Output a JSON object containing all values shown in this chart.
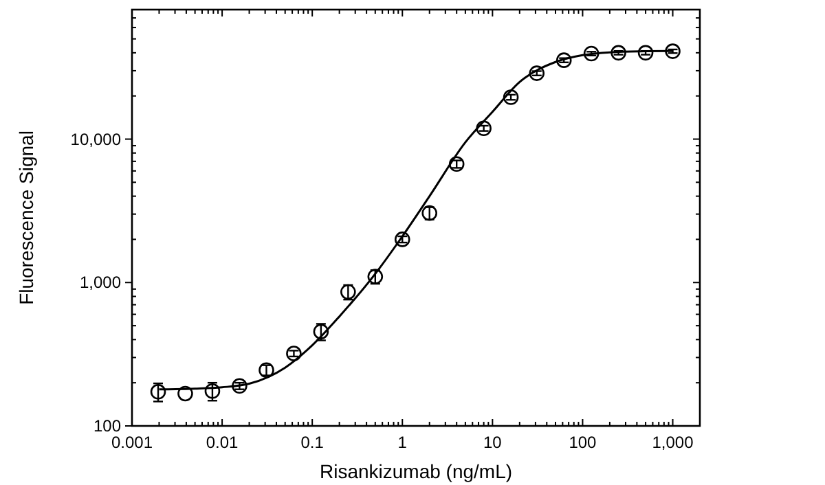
{
  "chart_data": {
    "type": "scatter",
    "xlabel": "Risankizumab (ng/mL)",
    "ylabel": "Fluorescence Signal",
    "log": "xy",
    "xlim": [
      0.001,
      2000
    ],
    "ylim": [
      100,
      80000
    ],
    "xticks": [
      0.001,
      {
        "value": 0.002,
        "label": null
      },
      {
        "value": 0.003,
        "label": null
      },
      {
        "value": 0.004,
        "label": null
      },
      {
        "value": 0.005,
        "label": null
      },
      {
        "value": 0.006,
        "label": null
      },
      {
        "value": 0.007,
        "label": null
      },
      {
        "value": 0.008,
        "label": null
      },
      {
        "value": 0.009,
        "label": null
      },
      0.01,
      {
        "value": 0.02,
        "label": null
      },
      {
        "value": 0.03,
        "label": null
      },
      {
        "value": 0.04,
        "label": null
      },
      {
        "value": 0.05,
        "label": null
      },
      {
        "value": 0.06,
        "label": null
      },
      {
        "value": 0.07,
        "label": null
      },
      {
        "value": 0.08,
        "label": null
      },
      {
        "value": 0.09,
        "label": null
      },
      0.1,
      {
        "value": 0.2,
        "label": null
      },
      {
        "value": 0.3,
        "label": null
      },
      {
        "value": 0.4,
        "label": null
      },
      {
        "value": 0.5,
        "label": null
      },
      {
        "value": 0.6,
        "label": null
      },
      {
        "value": 0.7,
        "label": null
      },
      {
        "value": 0.8,
        "label": null
      },
      {
        "value": 0.9,
        "label": null
      },
      1,
      {
        "value": 2,
        "label": null
      },
      {
        "value": 3,
        "label": null
      },
      {
        "value": 4,
        "label": null
      },
      {
        "value": 5,
        "label": null
      },
      {
        "value": 6,
        "label": null
      },
      {
        "value": 7,
        "label": null
      },
      {
        "value": 8,
        "label": null
      },
      {
        "value": 9,
        "label": null
      },
      10,
      {
        "value": 20,
        "label": null
      },
      {
        "value": 30,
        "label": null
      },
      {
        "value": 40,
        "label": null
      },
      {
        "value": 50,
        "label": null
      },
      {
        "value": 60,
        "label": null
      },
      {
        "value": 70,
        "label": null
      },
      {
        "value": 80,
        "label": null
      },
      {
        "value": 90,
        "label": null
      },
      100,
      {
        "value": 200,
        "label": null
      },
      {
        "value": 300,
        "label": null
      },
      {
        "value": 400,
        "label": null
      },
      {
        "value": 500,
        "label": null
      },
      {
        "value": 600,
        "label": null
      },
      {
        "value": 700,
        "label": null
      },
      {
        "value": 800,
        "label": null
      },
      {
        "value": 900,
        "label": null
      },
      {
        "value": 1000,
        "label": "1,000"
      }
    ],
    "yticks": [
      100,
      {
        "value": 200,
        "label": null
      },
      {
        "value": 300,
        "label": null
      },
      {
        "value": 400,
        "label": null
      },
      {
        "value": 500,
        "label": null
      },
      {
        "value": 600,
        "label": null
      },
      {
        "value": 700,
        "label": null
      },
      {
        "value": 800,
        "label": null
      },
      {
        "value": 900,
        "label": null
      },
      {
        "value": 1000,
        "label": "1,000"
      },
      {
        "value": 2000,
        "label": null
      },
      {
        "value": 3000,
        "label": null
      },
      {
        "value": 4000,
        "label": null
      },
      {
        "value": 5000,
        "label": null
      },
      {
        "value": 6000,
        "label": null
      },
      {
        "value": 7000,
        "label": null
      },
      {
        "value": 8000,
        "label": null
      },
      {
        "value": 9000,
        "label": null
      },
      {
        "value": 10000,
        "label": "10,000"
      },
      {
        "value": 20000,
        "label": null
      },
      {
        "value": 30000,
        "label": null
      },
      {
        "value": 40000,
        "label": null
      },
      {
        "value": 50000,
        "label": null
      },
      {
        "value": 60000,
        "label": null
      },
      {
        "value": 70000,
        "label": null
      }
    ],
    "grid": false,
    "marker": "circle",
    "series": [
      {
        "color": "#000000",
        "x": [
          0.00195,
          0.0039,
          0.0078,
          0.0156,
          0.031,
          0.0625,
          0.125,
          0.25,
          0.5,
          1,
          2,
          4,
          8,
          16,
          31,
          62,
          125,
          250,
          500,
          1000
        ],
        "values": [
          173,
          168,
          175,
          190,
          245,
          320,
          455,
          860,
          1100,
          2000,
          3050,
          6700,
          11900,
          19600,
          28800,
          35500,
          39500,
          40000,
          40000,
          41000
        ],
        "errors": [
          25,
          null,
          25,
          10,
          20,
          15,
          60,
          100,
          120,
          100,
          300,
          400,
          500,
          800,
          1000,
          1200,
          1200,
          1200,
          1200,
          1200
        ]
      },
      {
        "type": "line",
        "color": "#000000",
        "line_style": "solid",
        "marker": "none",
        "x": [
          0.002,
          0.005,
          0.01,
          0.02,
          0.05,
          0.1,
          0.2,
          0.5,
          1,
          2,
          5,
          10,
          20,
          50,
          100,
          200,
          500,
          1000
        ],
        "values": [
          180,
          182,
          186,
          197,
          255,
          365,
          580,
          1150,
          2100,
          4000,
          9500,
          15500,
          25000,
          34500,
          38500,
          40300,
          41000,
          41200
        ]
      }
    ]
  }
}
